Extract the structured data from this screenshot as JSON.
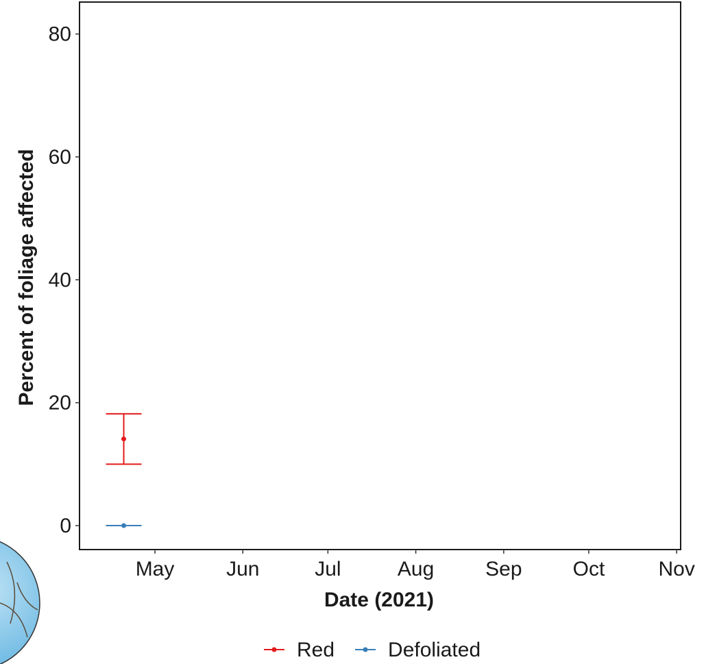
{
  "chart_data": {
    "type": "errorbar",
    "x_label": "Date (2021)",
    "y_label": "Percent of foliage affected",
    "x": [
      110
    ],
    "series": [
      {
        "name": "Red",
        "color": "#e41a1c",
        "values": [
          14.1
        ],
        "errors": [
          4.1
        ]
      },
      {
        "name": "Defoliated",
        "color": "#377eb8",
        "values": [
          0
        ],
        "errors": [
          0
        ]
      }
    ],
    "xlim": [
      94.4,
      306.4
    ],
    "xticks": [
      {
        "value": 121,
        "label": "May"
      },
      {
        "value": 152,
        "label": "Jun"
      },
      {
        "value": 182,
        "label": "Jul"
      },
      {
        "value": 213,
        "label": "Aug"
      },
      {
        "value": 244,
        "label": "Sep"
      },
      {
        "value": 274,
        "label": "Oct"
      },
      {
        "value": 305,
        "label": "Nov"
      }
    ],
    "ylim": [
      -3.9,
      85.2
    ],
    "yticks": [
      0,
      20,
      40,
      60,
      80
    ],
    "grid": false,
    "legend": "bottom"
  }
}
